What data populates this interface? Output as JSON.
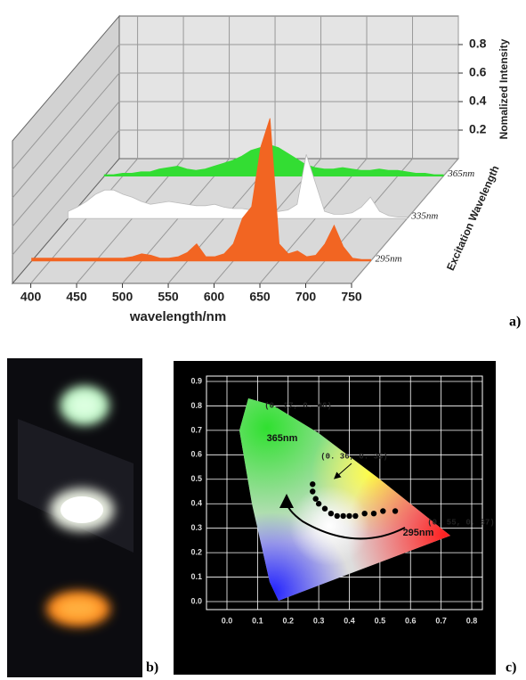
{
  "chart_data": [
    {
      "type": "waterfall",
      "x_label": "wavelength/nm",
      "y_label": "Nomalized Intensity",
      "z_label": "Excitation Wavelength",
      "x": [
        380,
        390,
        400,
        410,
        420,
        430,
        440,
        450,
        460,
        470,
        480,
        490,
        500,
        510,
        520,
        530,
        540,
        550,
        560,
        570,
        580,
        590,
        600,
        610,
        620,
        630,
        640,
        650,
        660,
        670,
        680,
        690,
        700,
        710,
        720,
        730,
        740,
        750
      ],
      "series": [
        {
          "name": "365nm",
          "color": "#33dd33",
          "values": [
            0.01,
            0.01,
            0.02,
            0.02,
            0.03,
            0.03,
            0.05,
            0.06,
            0.07,
            0.05,
            0.04,
            0.05,
            0.07,
            0.09,
            0.11,
            0.14,
            0.18,
            0.2,
            0.22,
            0.2,
            0.16,
            0.12,
            0.08,
            0.06,
            0.05,
            0.05,
            0.06,
            0.05,
            0.04,
            0.04,
            0.05,
            0.04,
            0.04,
            0.03,
            0.02,
            0.02,
            0.01,
            0.01
          ]
        },
        {
          "name": "335nm",
          "color": "#ffffff",
          "values": [
            0.05,
            0.08,
            0.12,
            0.17,
            0.2,
            0.2,
            0.17,
            0.15,
            0.12,
            0.1,
            0.11,
            0.12,
            0.11,
            0.1,
            0.09,
            0.09,
            0.1,
            0.08,
            0.07,
            0.07,
            0.06,
            0.06,
            0.05,
            0.05,
            0.06,
            0.1,
            0.45,
            0.25,
            0.05,
            0.03,
            0.03,
            0.04,
            0.08,
            0.15,
            0.05,
            0.02,
            0.01,
            0.01
          ]
        },
        {
          "name": "295nm",
          "color": "#f26522",
          "values": [
            0.02,
            0.02,
            0.02,
            0.02,
            0.02,
            0.02,
            0.02,
            0.02,
            0.02,
            0.02,
            0.02,
            0.03,
            0.05,
            0.04,
            0.02,
            0.02,
            0.03,
            0.06,
            0.12,
            0.03,
            0.03,
            0.05,
            0.12,
            0.3,
            0.38,
            0.8,
            1.0,
            0.12,
            0.05,
            0.07,
            0.03,
            0.04,
            0.12,
            0.25,
            0.1,
            0.02,
            0.01,
            0.01
          ]
        }
      ],
      "xlim": [
        380,
        750
      ],
      "xticks": [
        400,
        450,
        500,
        550,
        600,
        650,
        700,
        750
      ],
      "ylim": [
        0,
        1
      ],
      "yticks": [
        0.2,
        0.4,
        0.6,
        0.8
      ],
      "grid": true
    },
    {
      "type": "scatter",
      "x": [
        0.28,
        0.28,
        0.29,
        0.3,
        0.32,
        0.34,
        0.36,
        0.38,
        0.4,
        0.42,
        0.45,
        0.48,
        0.51,
        0.55
      ],
      "y": [
        0.48,
        0.45,
        0.42,
        0.4,
        0.38,
        0.36,
        0.35,
        0.35,
        0.35,
        0.35,
        0.36,
        0.36,
        0.37,
        0.37
      ],
      "color": "#000000",
      "annotations": [
        "(0. 27, 0. 46)",
        "(0. 36, 0. 35)",
        "(0. 55, 0. 37)",
        "365nm",
        "295nm"
      ],
      "xlim": [
        0,
        0.8
      ],
      "xticks": [
        {
          "value": 0,
          "label": "0.0"
        },
        0.1,
        0.2,
        0.3,
        0.4,
        0.5,
        0.6,
        0.7,
        0.8
      ],
      "ylim": [
        0,
        0.9
      ],
      "yticks": [
        {
          "value": 0,
          "label": "0.0"
        },
        0.1,
        0.2,
        0.3,
        0.4,
        0.5,
        0.6,
        0.7,
        0.8,
        0.9
      ],
      "grid": true
    }
  ],
  "panel_labels": [
    "a)",
    "b)",
    "c)"
  ]
}
